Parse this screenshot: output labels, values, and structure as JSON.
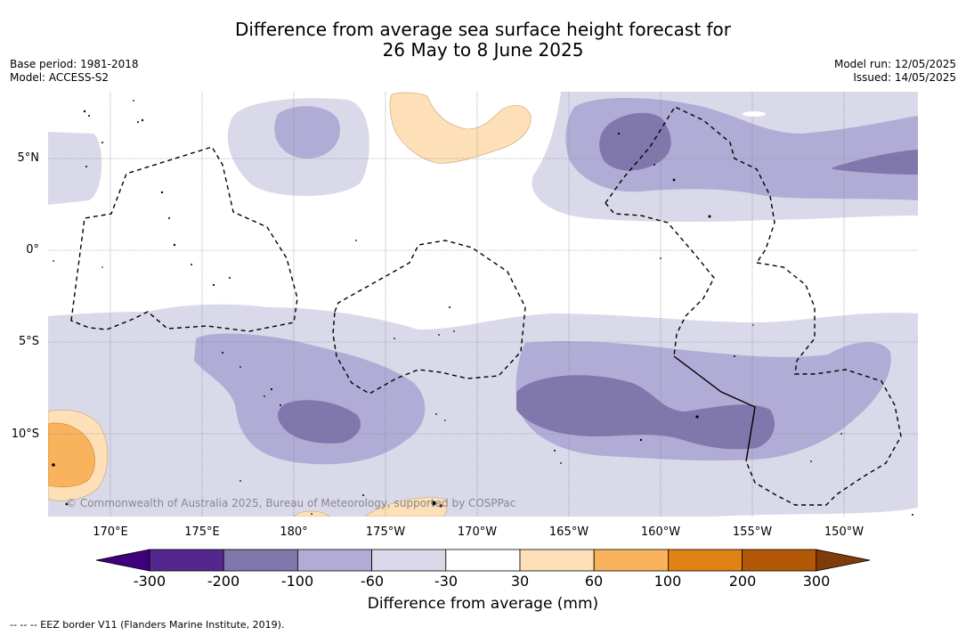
{
  "title": {
    "line1": "Difference from average sea surface height forecast for",
    "line2": "26 May to 8 June 2025"
  },
  "meta": {
    "base_period": "Base period: 1981-2018",
    "model": "Model: ACCESS-S2",
    "model_run": "Model run: 12/05/2025",
    "issued": "Issued: 14/05/2025"
  },
  "map": {
    "lat_labels": [
      "5°N",
      "0°",
      "5°S",
      "10°S"
    ],
    "lon_labels": [
      "170°E",
      "175°E",
      "180°",
      "175°W",
      "170°W",
      "165°W",
      "160°W",
      "155°W",
      "150°W"
    ],
    "copyright": "© Commonwealth of Australia 2025, Bureau of Meteorology, supported by COSPPac",
    "colors": {
      "neg_60_30": "#d9d9ea",
      "neg_100_60": "#b1acd5",
      "neg_200_100": "#8077ac",
      "pos_30_60": "#fde0b8",
      "pos_60_100": "#f9b35c",
      "land": "#000000",
      "grid": "#808080"
    }
  },
  "colorbar": {
    "ticks": [
      "-300",
      "-200",
      "-100",
      "-60",
      "-30",
      "30",
      "60",
      "100",
      "200",
      "300"
    ],
    "label": "Difference from average (mm)",
    "colors": [
      "#54278f",
      "#8077ac",
      "#b1acd5",
      "#d9d9ea",
      "#ffffff",
      "#fde0b8",
      "#f9b35c",
      "#e08214",
      "#b35806"
    ],
    "extend_low_color": "#3f007d",
    "extend_high_color": "#7f3b08"
  },
  "footnote": "--  --  -- EEZ border V11 (Flanders Marine Institute, 2019)."
}
